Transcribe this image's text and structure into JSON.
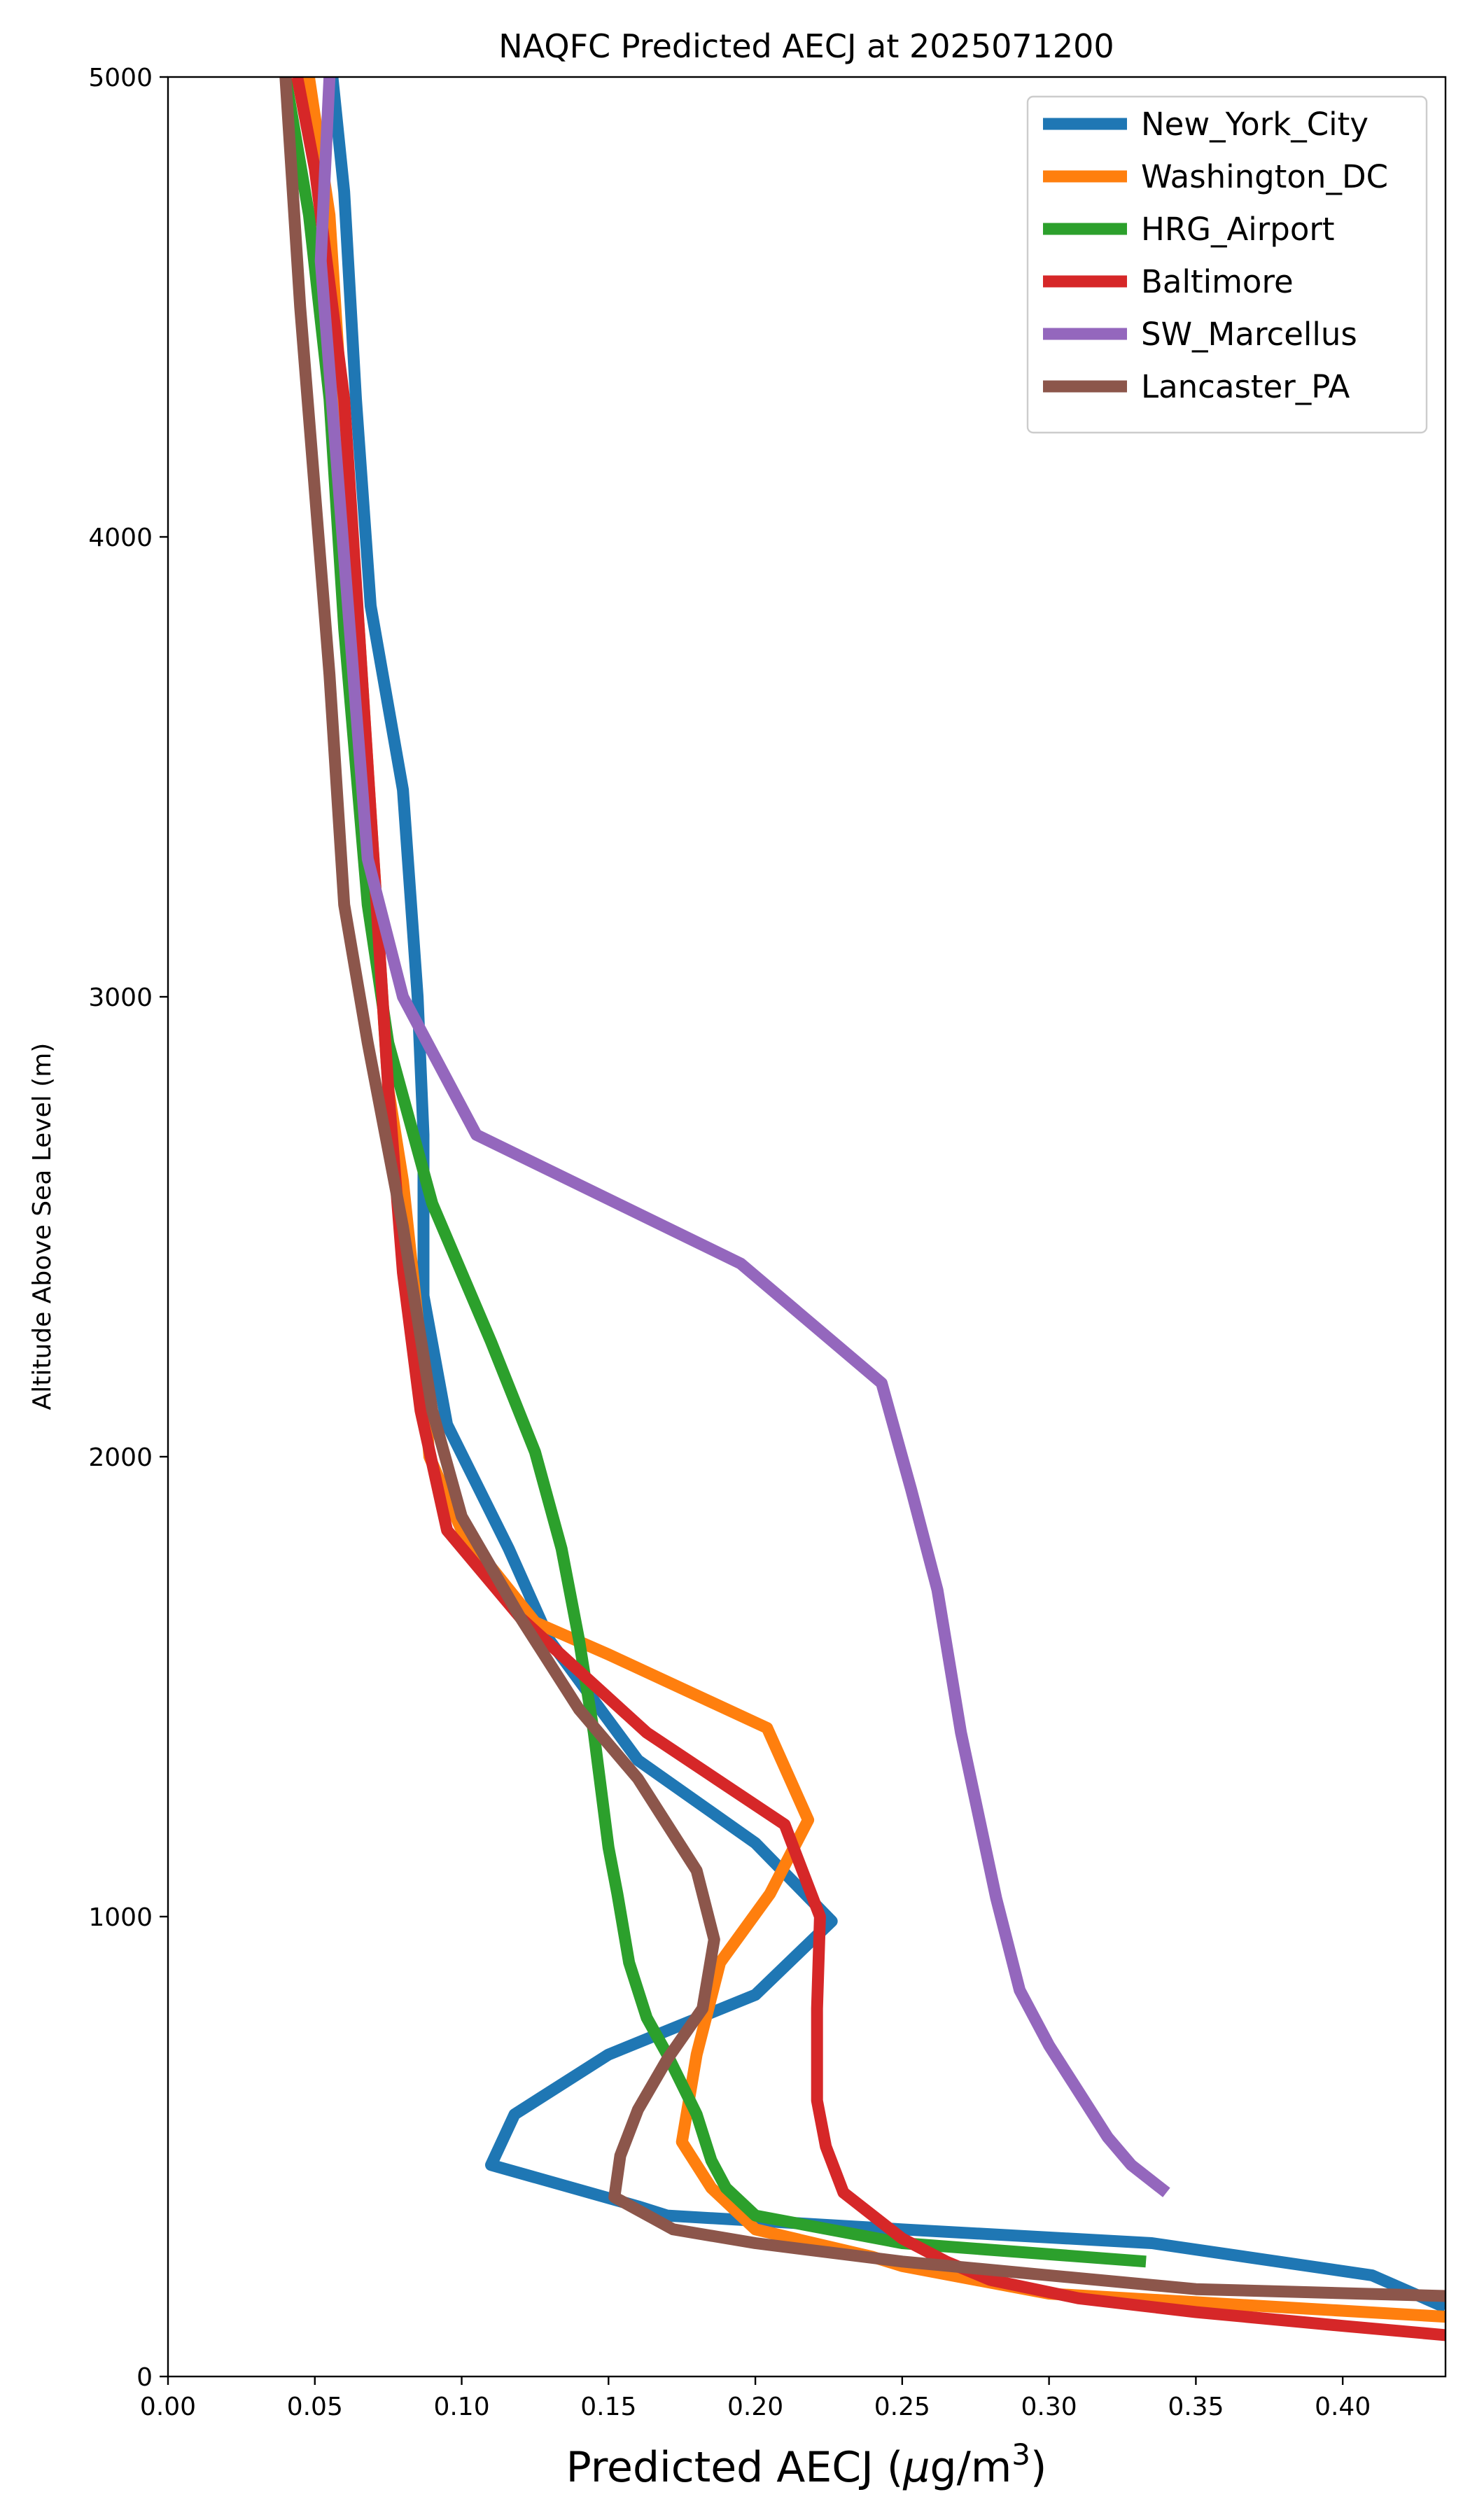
{
  "chart_data": {
    "type": "line",
    "title": "NAQFC Predicted AECJ at 2025071200",
    "xlabel": "Predicted AECJ (μg/m³)",
    "ylabel": "Altitude Above Sea Level (m)",
    "xlim": [
      0.0,
      0.435
    ],
    "ylim": [
      0,
      5000
    ],
    "xticks": [
      "0.00",
      "0.05",
      "0.10",
      "0.15",
      "0.20",
      "0.25",
      "0.30",
      "0.35",
      "0.40"
    ],
    "yticks": [
      "0",
      "1000",
      "2000",
      "3000",
      "4000",
      "5000"
    ],
    "grid": false,
    "legend_position": "top-right",
    "series": [
      {
        "name": "New_York_City",
        "color": "#1f77b4",
        "points": [
          [
            0.435,
            150
          ],
          [
            0.41,
            220
          ],
          [
            0.335,
            290
          ],
          [
            0.25,
            320
          ],
          [
            0.17,
            350
          ],
          [
            0.16,
            370
          ],
          [
            0.11,
            460
          ],
          [
            0.118,
            570
          ],
          [
            0.15,
            700
          ],
          [
            0.2,
            830
          ],
          [
            0.226,
            990
          ],
          [
            0.2,
            1160
          ],
          [
            0.16,
            1340
          ],
          [
            0.13,
            1600
          ],
          [
            0.116,
            1800
          ],
          [
            0.095,
            2070
          ],
          [
            0.087,
            2350
          ],
          [
            0.087,
            2700
          ],
          [
            0.085,
            3000
          ],
          [
            0.08,
            3450
          ],
          [
            0.069,
            3850
          ],
          [
            0.064,
            4300
          ],
          [
            0.06,
            4750
          ],
          [
            0.056,
            5000
          ]
        ]
      },
      {
        "name": "Washington_DC",
        "color": "#ff7f0e",
        "points": [
          [
            0.435,
            130
          ],
          [
            0.3,
            180
          ],
          [
            0.25,
            240
          ],
          [
            0.24,
            260
          ],
          [
            0.2,
            320
          ],
          [
            0.185,
            410
          ],
          [
            0.175,
            510
          ],
          [
            0.18,
            700
          ],
          [
            0.188,
            900
          ],
          [
            0.205,
            1050
          ],
          [
            0.218,
            1210
          ],
          [
            0.204,
            1410
          ],
          [
            0.15,
            1570
          ],
          [
            0.125,
            1640
          ],
          [
            0.1,
            1840
          ],
          [
            0.089,
            2000
          ],
          [
            0.085,
            2300
          ],
          [
            0.08,
            2600
          ],
          [
            0.075,
            2800
          ],
          [
            0.07,
            3300
          ],
          [
            0.065,
            3800
          ],
          [
            0.06,
            4200
          ],
          [
            0.055,
            4700
          ],
          [
            0.048,
            5000
          ]
        ]
      },
      {
        "name": "HRG_Airport",
        "color": "#2ca02c",
        "points": [
          [
            0.333,
            250
          ],
          [
            0.25,
            290
          ],
          [
            0.2,
            350
          ],
          [
            0.19,
            410
          ],
          [
            0.185,
            470
          ],
          [
            0.18,
            570
          ],
          [
            0.17,
            700
          ],
          [
            0.163,
            780
          ],
          [
            0.157,
            900
          ],
          [
            0.153,
            1050
          ],
          [
            0.15,
            1150
          ],
          [
            0.145,
            1400
          ],
          [
            0.14,
            1600
          ],
          [
            0.134,
            1800
          ],
          [
            0.125,
            2010
          ],
          [
            0.11,
            2250
          ],
          [
            0.09,
            2550
          ],
          [
            0.075,
            2900
          ],
          [
            0.068,
            3200
          ],
          [
            0.06,
            3800
          ],
          [
            0.055,
            4300
          ],
          [
            0.048,
            4700
          ],
          [
            0.04,
            5000
          ]
        ]
      },
      {
        "name": "Baltimore",
        "color": "#d62728",
        "points": [
          [
            0.435,
            90
          ],
          [
            0.4,
            110
          ],
          [
            0.35,
            140
          ],
          [
            0.31,
            170
          ],
          [
            0.28,
            210
          ],
          [
            0.265,
            250
          ],
          [
            0.25,
            300
          ],
          [
            0.24,
            350
          ],
          [
            0.23,
            400
          ],
          [
            0.224,
            500
          ],
          [
            0.221,
            600
          ],
          [
            0.221,
            800
          ],
          [
            0.222,
            1000
          ],
          [
            0.21,
            1200
          ],
          [
            0.163,
            1400
          ],
          [
            0.12,
            1650
          ],
          [
            0.095,
            1840
          ],
          [
            0.086,
            2100
          ],
          [
            0.08,
            2400
          ],
          [
            0.075,
            2800
          ],
          [
            0.07,
            3300
          ],
          [
            0.065,
            3800
          ],
          [
            0.06,
            4300
          ],
          [
            0.05,
            4800
          ],
          [
            0.044,
            5000
          ]
        ]
      },
      {
        "name": "SW_Marcellus",
        "color": "#9467bd",
        "points": [
          [
            0.34,
            400
          ],
          [
            0.328,
            460
          ],
          [
            0.32,
            520
          ],
          [
            0.31,
            620
          ],
          [
            0.3,
            720
          ],
          [
            0.29,
            840
          ],
          [
            0.282,
            1040
          ],
          [
            0.27,
            1400
          ],
          [
            0.262,
            1710
          ],
          [
            0.253,
            1930
          ],
          [
            0.243,
            2160
          ],
          [
            0.195,
            2420
          ],
          [
            0.105,
            2700
          ],
          [
            0.08,
            3000
          ],
          [
            0.068,
            3300
          ],
          [
            0.057,
            4200
          ],
          [
            0.052,
            4600
          ],
          [
            0.055,
            5000
          ]
        ]
      },
      {
        "name": "Lancaster_PA",
        "color": "#8c564b",
        "points": [
          [
            0.435,
            175
          ],
          [
            0.35,
            190
          ],
          [
            0.25,
            250
          ],
          [
            0.2,
            290
          ],
          [
            0.172,
            320
          ],
          [
            0.152,
            390
          ],
          [
            0.154,
            480
          ],
          [
            0.16,
            580
          ],
          [
            0.17,
            690
          ],
          [
            0.182,
            800
          ],
          [
            0.186,
            950
          ],
          [
            0.18,
            1100
          ],
          [
            0.16,
            1300
          ],
          [
            0.14,
            1450
          ],
          [
            0.12,
            1650
          ],
          [
            0.1,
            1870
          ],
          [
            0.09,
            2100
          ],
          [
            0.08,
            2500
          ],
          [
            0.068,
            2900
          ],
          [
            0.06,
            3200
          ],
          [
            0.055,
            3700
          ],
          [
            0.05,
            4100
          ],
          [
            0.045,
            4500
          ],
          [
            0.041,
            4900
          ],
          [
            0.04,
            5000
          ]
        ]
      }
    ]
  }
}
